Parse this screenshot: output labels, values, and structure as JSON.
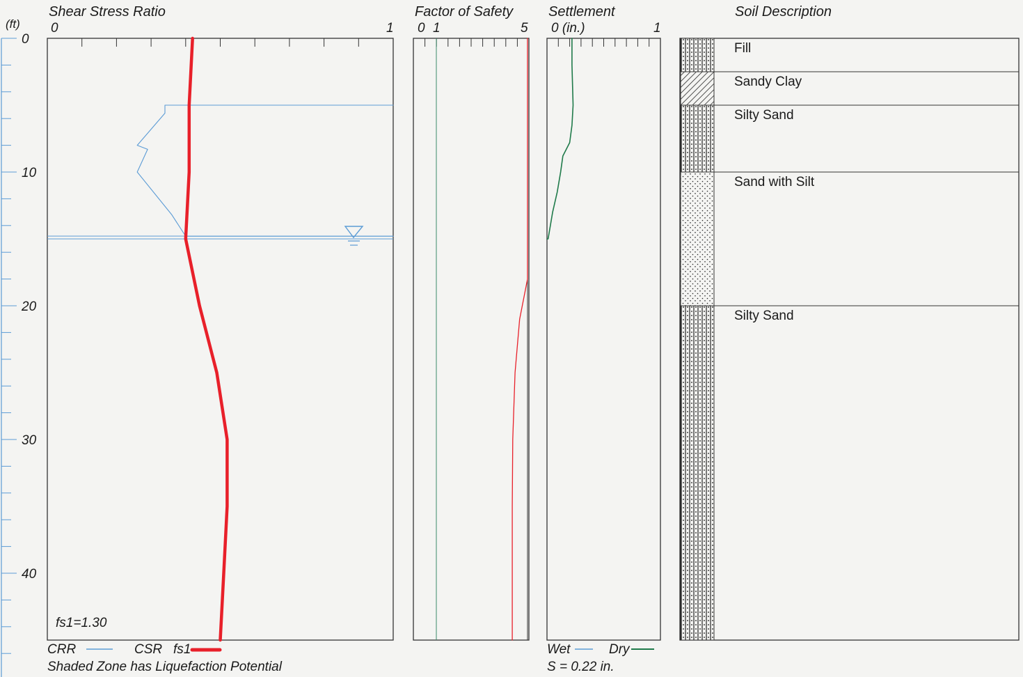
{
  "units_label": "(ft)",
  "depth_ticks": [
    "0",
    "10",
    "20",
    "30",
    "40"
  ],
  "panels": {
    "shear": {
      "title": "Shear Stress Ratio",
      "min_label": "0",
      "max_label": "1"
    },
    "fos": {
      "title": "Factor of Safety",
      "min_label": "0",
      "one_label": "1",
      "max_label": "5"
    },
    "settle": {
      "title": "Settlement",
      "min_label": "0 (in.)",
      "max_label": "1"
    },
    "soil": {
      "title": "Soil Description"
    }
  },
  "legend": {
    "crr": "CRR",
    "csr": "CSR",
    "fs": "fs1",
    "fs_value": "fs1=1.30",
    "note": "Shaded Zone has Liquefaction Potential",
    "wet": "Wet",
    "dry": "Dry",
    "settlement_total": "S = 0.22 in."
  },
  "soil_layers": [
    {
      "label": "Fill",
      "top": 0,
      "bottom": 2.5,
      "pattern": "dots-lines"
    },
    {
      "label": "Sandy Clay",
      "top": 2.5,
      "bottom": 5,
      "pattern": "hatch"
    },
    {
      "label": "Silty Sand",
      "top": 5,
      "bottom": 10,
      "pattern": "dots-lines"
    },
    {
      "label": "Sand with Silt",
      "top": 10,
      "bottom": 20,
      "pattern": "dots"
    },
    {
      "label": "Silty Sand",
      "top": 20,
      "bottom": 45,
      "pattern": "dots-lines"
    }
  ],
  "colors": {
    "crr": "#5b9bd5",
    "csr": "#e8202a",
    "fos": "#e8202a",
    "fos_one": "#3a8a6a",
    "dry": "#1f7a4a",
    "axis": "#5b9bd5",
    "frame": "#333333"
  },
  "chart_data": [
    {
      "type": "line",
      "title": "Shear Stress Ratio",
      "xlim": [
        0,
        1
      ],
      "ylim": [
        0,
        45
      ],
      "ylabel": "(ft)",
      "y_reversed": true,
      "series": [
        {
          "name": "CRR",
          "points": [
            [
              1.0,
              5.0
            ],
            [
              0.34,
              5.0
            ],
            [
              0.34,
              5.6
            ],
            [
              0.26,
              8.0
            ],
            [
              0.29,
              8.3
            ],
            [
              0.26,
              10.0
            ],
            [
              0.36,
              13.2
            ],
            [
              0.4,
              14.8
            ],
            [
              1.0,
              14.8
            ]
          ]
        },
        {
          "name": "CSR fs1",
          "points": [
            [
              0.42,
              0
            ],
            [
              0.41,
              5
            ],
            [
              0.41,
              10
            ],
            [
              0.4,
              15
            ],
            [
              0.44,
              20
            ],
            [
              0.49,
              25
            ],
            [
              0.52,
              30
            ],
            [
              0.52,
              35
            ],
            [
              0.51,
              40
            ],
            [
              0.5,
              45
            ]
          ]
        }
      ],
      "water_table_depth": 15.0
    },
    {
      "type": "line",
      "title": "Factor of Safety",
      "xlim": [
        0,
        5
      ],
      "ylim": [
        0,
        45
      ],
      "y_reversed": true,
      "series": [
        {
          "name": "fs1",
          "points": [
            [
              5,
              0
            ],
            [
              5,
              18
            ],
            [
              4.6,
              21
            ],
            [
              4.4,
              25
            ],
            [
              4.3,
              30
            ],
            [
              4.28,
              35
            ],
            [
              4.28,
              40
            ],
            [
              4.28,
              45
            ]
          ]
        }
      ]
    },
    {
      "type": "line",
      "title": "Settlement",
      "xlim": [
        0,
        1
      ],
      "ylim": [
        0,
        45
      ],
      "y_reversed": true,
      "series": [
        {
          "name": "Dry",
          "points": [
            [
              0.22,
              0
            ],
            [
              0.22,
              2
            ],
            [
              0.23,
              5
            ],
            [
              0.22,
              6.5
            ],
            [
              0.2,
              7.8
            ],
            [
              0.14,
              8.8
            ],
            [
              0.12,
              10
            ],
            [
              0.09,
              11.5
            ],
            [
              0.05,
              13
            ],
            [
              0.01,
              15
            ],
            [
              0.0,
              15
            ]
          ]
        }
      ]
    }
  ]
}
